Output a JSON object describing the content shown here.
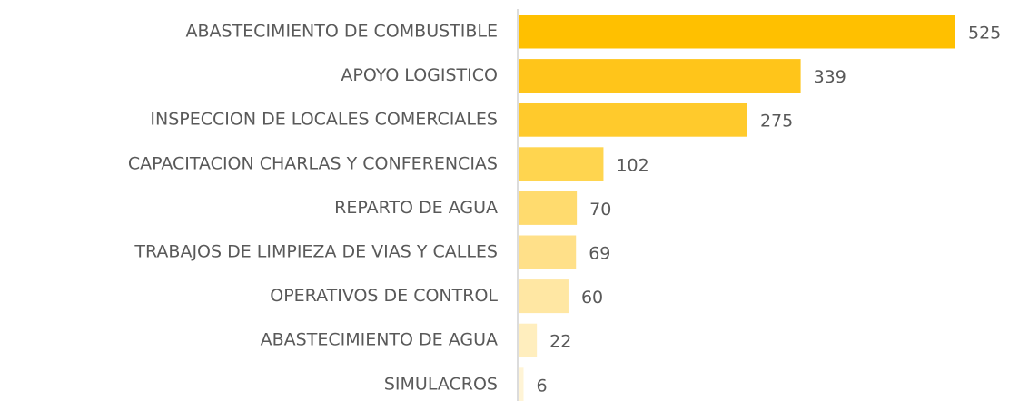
{
  "chart_data": {
    "type": "bar",
    "orientation": "horizontal",
    "categories": [
      "ABASTECIMIENTO DE COMBUSTIBLE",
      "APOYO LOGISTICO",
      "INSPECCION DE LOCALES COMERCIALES",
      "CAPACITACION CHARLAS Y CONFERENCIAS",
      "REPARTO DE AGUA",
      "TRABAJOS DE LIMPIEZA DE VIAS Y CALLES",
      "OPERATIVOS DE CONTROL",
      "ABASTECIMIENTO DE AGUA",
      "SIMULACROS"
    ],
    "values": [
      525,
      339,
      275,
      102,
      70,
      69,
      60,
      22,
      6
    ],
    "colors": [
      "#ffc000",
      "#ffc51a",
      "#ffca2c",
      "#ffd54f",
      "#ffdb6e",
      "#ffe089",
      "#ffe7a3",
      "#ffeebe",
      "#fff4d6"
    ]
  }
}
